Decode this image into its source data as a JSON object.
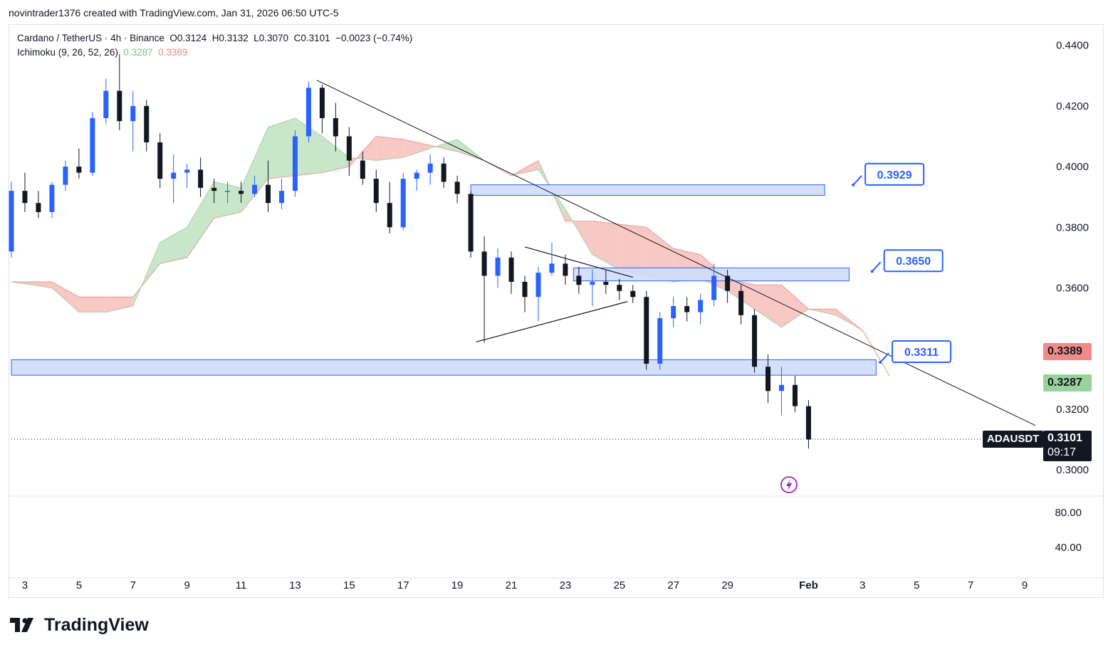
{
  "credit": "novintrader1376 created with TradingView.com, Jan 31, 2026 06:50 UTC-5",
  "header": {
    "symbol_line": "Cardano / TetherUS · 4h · Binance",
    "open": "O0.3124",
    "high": "H0.3132",
    "low": "L0.3070",
    "close": "C0.3101",
    "change": "−0.0023 (−0.74%)",
    "indicator": "Ichimoku (9, 26, 52, 26)",
    "span_a": "0.3287",
    "span_b": "0.3389"
  },
  "logo": "TradingView",
  "colors": {
    "bull": "#2962ff",
    "bear": "#131722",
    "cloud_bull": "#c8e6c9",
    "cloud_bear": "#f8c8c4",
    "zone_fill": "#cfdcfb",
    "zone_stroke": "#2962ff"
  },
  "chart_data": {
    "type": "candlestick",
    "symbol": "ADAUSDT",
    "interval": "4h",
    "y_axis": {
      "min": 0.2925,
      "max": 0.4465,
      "ticks": [
        "0.4400",
        "0.4200",
        "0.4000",
        "0.3800",
        "0.3600",
        "0.3400",
        "0.3200",
        "0.3000"
      ]
    },
    "oscillator_ticks": [
      "80.00",
      "40.00"
    ],
    "x_ticks": [
      "3",
      "5",
      "7",
      "9",
      "11",
      "13",
      "15",
      "17",
      "19",
      "21",
      "23",
      "25",
      "27",
      "29",
      "Feb",
      "3",
      "5",
      "7",
      "9"
    ],
    "x_tick_days": [
      3,
      5,
      7,
      9,
      11,
      13,
      15,
      17,
      19,
      21,
      23,
      25,
      27,
      29,
      32,
      34,
      36,
      38,
      40
    ],
    "day_range": [
      2.5,
      40.5
    ],
    "candles_ohlc_by_day": [
      [
        2.5,
        0.372,
        0.395,
        0.37,
        0.392
      ],
      [
        3.0,
        0.392,
        0.398,
        0.385,
        0.388
      ],
      [
        3.5,
        0.388,
        0.392,
        0.383,
        0.385
      ],
      [
        4.0,
        0.385,
        0.395,
        0.383,
        0.394
      ],
      [
        4.5,
        0.394,
        0.402,
        0.392,
        0.4
      ],
      [
        5.0,
        0.4,
        0.406,
        0.396,
        0.398
      ],
      [
        5.5,
        0.398,
        0.418,
        0.397,
        0.416
      ],
      [
        6.0,
        0.416,
        0.429,
        0.414,
        0.425
      ],
      [
        6.5,
        0.425,
        0.437,
        0.412,
        0.415
      ],
      [
        7.0,
        0.415,
        0.425,
        0.405,
        0.42
      ],
      [
        7.5,
        0.42,
        0.422,
        0.405,
        0.408
      ],
      [
        8.0,
        0.408,
        0.411,
        0.393,
        0.396
      ],
      [
        8.5,
        0.396,
        0.404,
        0.388,
        0.398
      ],
      [
        9.0,
        0.398,
        0.401,
        0.393,
        0.399
      ],
      [
        9.5,
        0.399,
        0.403,
        0.39,
        0.393
      ],
      [
        10.0,
        0.393,
        0.396,
        0.388,
        0.392
      ],
      [
        10.5,
        0.392,
        0.395,
        0.388,
        0.392
      ],
      [
        11.0,
        0.392,
        0.395,
        0.388,
        0.391
      ],
      [
        11.5,
        0.391,
        0.397,
        0.39,
        0.394
      ],
      [
        12.0,
        0.394,
        0.402,
        0.385,
        0.388
      ],
      [
        12.5,
        0.388,
        0.396,
        0.386,
        0.392
      ],
      [
        13.0,
        0.392,
        0.412,
        0.39,
        0.41
      ],
      [
        13.5,
        0.41,
        0.428,
        0.408,
        0.426
      ],
      [
        14.0,
        0.426,
        0.427,
        0.411,
        0.416
      ],
      [
        14.5,
        0.416,
        0.421,
        0.405,
        0.41
      ],
      [
        15.0,
        0.41,
        0.413,
        0.397,
        0.402
      ],
      [
        15.5,
        0.402,
        0.405,
        0.394,
        0.396
      ],
      [
        16.0,
        0.396,
        0.399,
        0.385,
        0.388
      ],
      [
        16.5,
        0.388,
        0.395,
        0.378,
        0.38
      ],
      [
        17.0,
        0.38,
        0.398,
        0.379,
        0.396
      ],
      [
        17.5,
        0.396,
        0.399,
        0.392,
        0.398
      ],
      [
        18.0,
        0.398,
        0.404,
        0.394,
        0.401
      ],
      [
        18.5,
        0.401,
        0.403,
        0.393,
        0.395
      ],
      [
        19.0,
        0.395,
        0.397,
        0.388,
        0.391
      ],
      [
        19.5,
        0.391,
        0.392,
        0.37,
        0.372
      ],
      [
        20.0,
        0.372,
        0.377,
        0.342,
        0.364
      ],
      [
        20.5,
        0.364,
        0.373,
        0.36,
        0.37
      ],
      [
        21.0,
        0.37,
        0.372,
        0.358,
        0.362
      ],
      [
        21.5,
        0.362,
        0.364,
        0.352,
        0.357
      ],
      [
        22.0,
        0.357,
        0.367,
        0.349,
        0.365
      ],
      [
        22.5,
        0.365,
        0.375,
        0.364,
        0.368
      ],
      [
        23.0,
        0.368,
        0.371,
        0.361,
        0.364
      ],
      [
        23.5,
        0.364,
        0.367,
        0.358,
        0.361
      ],
      [
        24.0,
        0.361,
        0.366,
        0.354,
        0.362
      ],
      [
        24.5,
        0.362,
        0.366,
        0.358,
        0.361
      ],
      [
        25.0,
        0.361,
        0.363,
        0.356,
        0.359
      ],
      [
        25.5,
        0.359,
        0.361,
        0.355,
        0.357
      ],
      [
        26.0,
        0.357,
        0.359,
        0.333,
        0.335
      ],
      [
        26.5,
        0.335,
        0.352,
        0.333,
        0.35
      ],
      [
        27.0,
        0.35,
        0.357,
        0.347,
        0.354
      ],
      [
        27.5,
        0.354,
        0.357,
        0.349,
        0.352
      ],
      [
        28.0,
        0.352,
        0.358,
        0.348,
        0.356
      ],
      [
        28.5,
        0.356,
        0.368,
        0.354,
        0.364
      ],
      [
        29.0,
        0.364,
        0.366,
        0.355,
        0.359
      ],
      [
        29.5,
        0.359,
        0.361,
        0.348,
        0.351
      ],
      [
        30.0,
        0.351,
        0.353,
        0.332,
        0.334
      ],
      [
        30.5,
        0.334,
        0.338,
        0.322,
        0.326
      ],
      [
        31.0,
        0.326,
        0.334,
        0.318,
        0.328
      ],
      [
        31.5,
        0.328,
        0.331,
        0.319,
        0.321
      ],
      [
        32.0,
        0.321,
        0.323,
        0.307,
        0.31
      ]
    ],
    "ichimoku_cloud_by_day": {
      "days": [
        2.5,
        4,
        5,
        6,
        7,
        8,
        9,
        10,
        11,
        12,
        13,
        14,
        15,
        16,
        17,
        18,
        19,
        20,
        21,
        22,
        23,
        24,
        25,
        26,
        27,
        28,
        29,
        30,
        31,
        32,
        33,
        34,
        35
      ],
      "span_a": [
        0.362,
        0.36,
        0.352,
        0.352,
        0.354,
        0.375,
        0.38,
        0.395,
        0.393,
        0.413,
        0.416,
        0.41,
        0.403,
        0.402,
        0.403,
        0.406,
        0.409,
        0.402,
        0.397,
        0.399,
        0.386,
        0.371,
        0.366,
        0.364,
        0.362,
        0.363,
        0.359,
        0.353,
        0.347,
        0.353,
        0.351,
        0.346,
        0.331
      ],
      "span_b": [
        0.362,
        0.362,
        0.357,
        0.357,
        0.357,
        0.368,
        0.37,
        0.383,
        0.385,
        0.396,
        0.397,
        0.398,
        0.4,
        0.41,
        0.409,
        0.407,
        0.405,
        0.402,
        0.397,
        0.402,
        0.382,
        0.382,
        0.381,
        0.38,
        0.373,
        0.371,
        0.363,
        0.361,
        0.361,
        0.353,
        0.353,
        0.346,
        0.331
      ]
    },
    "trendline_days_prices": [
      [
        13.8,
        0.4285
      ],
      [
        40.4,
        0.3146
      ]
    ],
    "triangle_days_prices": [
      [
        [
          19.7,
          0.3422
        ],
        [
          25.3,
          0.3555
        ]
      ],
      [
        [
          21.5,
          0.3735
        ],
        [
          25.5,
          0.3635
        ]
      ]
    ],
    "zones": [
      {
        "day_from": 19.5,
        "day_to": 32.6,
        "top": 0.394,
        "bottom": 0.3905,
        "label": "0.3929",
        "label_day": 34.1,
        "label_price": 0.401
      },
      {
        "day_from": 23.3,
        "day_to": 33.5,
        "top": 0.3666,
        "bottom": 0.3623,
        "label": "0.3650",
        "label_day": 34.8,
        "label_price": 0.3725
      },
      {
        "day_from": 2.5,
        "day_to": 34.5,
        "top": 0.3363,
        "bottom": 0.3312,
        "label": "0.3311",
        "label_day": 35.1,
        "label_price": 0.3425
      }
    ],
    "last_price": "0.3101",
    "last_price_value": 0.3101,
    "countdown": "09:17",
    "price_tags": [
      {
        "label": "0.3389",
        "value": 0.3389,
        "role": "span_b"
      },
      {
        "label": "0.3287",
        "value": 0.3287,
        "role": "span_a"
      }
    ]
  }
}
